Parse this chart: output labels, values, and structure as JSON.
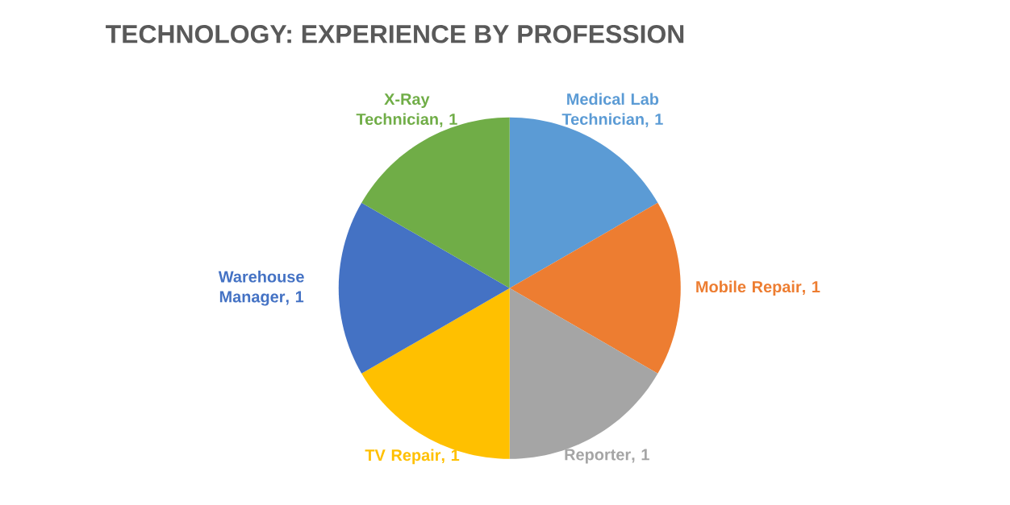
{
  "chart_data": {
    "type": "pie",
    "title": "TECHNOLOGY:  EXPERIENCE BY PROFESSION",
    "categories": [
      "Medical Lab Technician",
      "Mobile Repair",
      "Reporter",
      "TV Repair",
      "Warehouse Manager",
      "X-Ray Technician"
    ],
    "values": [
      1,
      1,
      1,
      1,
      1,
      1
    ],
    "colors": [
      "#5b9bd5",
      "#ed7d31",
      "#a5a5a5",
      "#ffc000",
      "#4472c4",
      "#70ad47"
    ],
    "value_labels": [
      ", 1",
      ", 1",
      ", 1",
      ", 1",
      ", 1",
      ", 1"
    ]
  }
}
